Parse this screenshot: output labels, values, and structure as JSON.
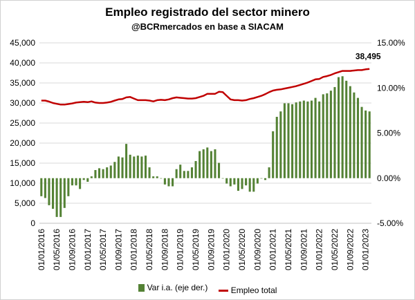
{
  "chart_data": {
    "type": "bar",
    "title": "Empleo registrado del sector minero",
    "subtitle": "@BCRmercados en base a SIACAM",
    "y_left_ticks": [
      "45,000",
      "40,000",
      "35,000",
      "30,000",
      "25,000",
      "20,000",
      "15,000",
      "10,000",
      "5,000",
      "0"
    ],
    "y_right_ticks": [
      "15.00%",
      "10.00%",
      "5.00%",
      "0.00%",
      "-5.00%"
    ],
    "ylim_left": [
      0,
      45000
    ],
    "ylim_right": [
      -0.05,
      0.15
    ],
    "x_tick_labels": [
      "01/01/2016",
      "01/05/2016",
      "01/09/2016",
      "01/01/2017",
      "01/05/2017",
      "01/09/2017",
      "01/01/2018",
      "01/05/2018",
      "01/09/2018",
      "01/01/2019",
      "01/05/2019",
      "01/09/2019",
      "01/01/2020",
      "01/05/2020",
      "01/09/2020",
      "01/01/2021",
      "01/05/2021",
      "01/09/2021",
      "01/01/2022",
      "01/05/2022",
      "01/09/2022",
      "01/01/2023"
    ],
    "x_tick_every": 4,
    "last_value_label": "38,495",
    "series": [
      {
        "name": "Var i.a. (eje der.)",
        "kind": "bar",
        "axis": "right",
        "color": "#548235",
        "values": [
          -0.02,
          -0.022,
          -0.03,
          -0.034,
          -0.043,
          -0.043,
          -0.033,
          -0.02,
          -0.008,
          -0.008,
          -0.012,
          -0.002,
          -0.004,
          0.002,
          0.009,
          0.011,
          0.01,
          0.012,
          0.014,
          0.018,
          0.024,
          0.023,
          0.038,
          0.026,
          0.024,
          0.025,
          0.024,
          0.025,
          0.012,
          0.002,
          0.002,
          0.0,
          -0.007,
          -0.009,
          -0.009,
          0.01,
          0.015,
          0.008,
          0.008,
          0.012,
          0.019,
          0.03,
          0.032,
          0.034,
          0.03,
          0.032,
          0.017,
          0.0,
          -0.006,
          -0.009,
          -0.007,
          -0.014,
          -0.012,
          -0.008,
          -0.015,
          -0.015,
          -0.006,
          0.0,
          -0.002,
          0.012,
          0.052,
          0.068,
          0.074,
          0.083,
          0.083,
          0.082,
          0.084,
          0.085,
          0.086,
          0.085,
          0.086,
          0.089,
          0.085,
          0.093,
          0.094,
          0.097,
          0.101,
          0.112,
          0.113,
          0.108,
          0.102,
          0.095,
          0.089,
          0.079,
          0.075,
          0.074
        ]
      },
      {
        "name": "Empleo total",
        "kind": "line",
        "axis": "left",
        "color": "#c00000",
        "values": [
          30600,
          30600,
          30350,
          30000,
          29800,
          29600,
          29600,
          29750,
          29900,
          30100,
          30200,
          30300,
          30200,
          30400,
          30100,
          30000,
          30000,
          30100,
          30300,
          30600,
          30900,
          31000,
          31400,
          31500,
          31100,
          30700,
          30700,
          30700,
          30600,
          30400,
          30700,
          30800,
          30700,
          30900,
          31200,
          31400,
          31300,
          31200,
          31100,
          31100,
          31200,
          31500,
          31800,
          32300,
          32300,
          32300,
          32800,
          32700,
          31800,
          30900,
          30700,
          30700,
          30600,
          30700,
          31000,
          31200,
          31500,
          31800,
          32200,
          32700,
          33100,
          33300,
          33400,
          33600,
          33800,
          34000,
          34200,
          34500,
          34800,
          35100,
          35500,
          35900,
          36000,
          36500,
          36700,
          37000,
          37400,
          37700,
          38000,
          38000,
          38000,
          38100,
          38200,
          38200,
          38400,
          38495
        ]
      }
    ]
  }
}
